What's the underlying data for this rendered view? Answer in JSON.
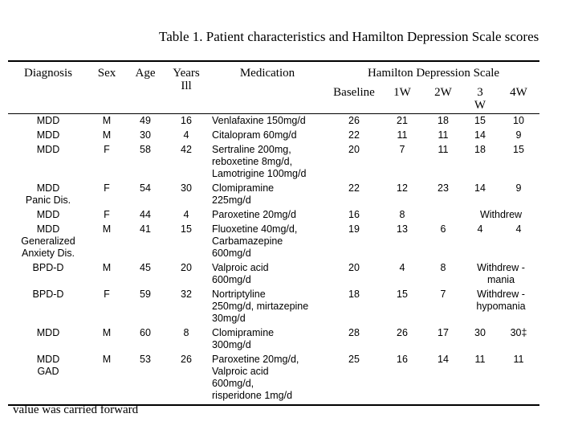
{
  "title": "Table 1. Patient characteristics and Hamilton Depression Scale scores",
  "table": {
    "headers": [
      "Diagnosis",
      "Sex",
      "Age",
      [
        "Years",
        "Ill"
      ],
      "Medication"
    ],
    "group_header": "Hamilton Depression Scale",
    "sub_headers": [
      "Baseline",
      "1W",
      "2W",
      [
        "3",
        "W"
      ],
      "4W"
    ],
    "rows": [
      {
        "patient": [
          "MDD",
          "M",
          "49",
          "16",
          [
            "Venlafaxine 150mg/d"
          ]
        ],
        "scores": [
          "26",
          "21",
          "18",
          "15",
          "10"
        ]
      },
      {
        "patient": [
          "MDD",
          "M",
          "30",
          "4",
          [
            "Citalopram 60mg/d"
          ]
        ],
        "scores": [
          "22",
          "11",
          "11",
          "14",
          "9"
        ]
      },
      {
        "patient": [
          "MDD",
          "F",
          "58",
          "42",
          [
            "Sertraline 200mg,",
            "reboxetine 8mg/d,",
            "Lamotrigine 100mg/d"
          ]
        ],
        "scores": [
          "20",
          "7",
          "11",
          "18",
          "15"
        ]
      },
      {
        "patient": [
          [
            "MDD",
            "Panic Dis."
          ],
          "F",
          "54",
          "30",
          [
            "Clomipramine",
            "225mg/d"
          ]
        ],
        "scores": [
          "22",
          "12",
          "23",
          "14",
          "9"
        ]
      },
      {
        "patient": [
          "MDD",
          "F",
          "44",
          "4",
          [
            "Paroxetine 20mg/d"
          ]
        ],
        "scores": [
          "16",
          "8"
        ],
        "status": [
          "Withdrew"
        ]
      },
      {
        "patient": [
          [
            "MDD",
            "Generalized",
            "Anxiety Dis."
          ],
          "M",
          "41",
          "15",
          [
            "Fluoxetine 40mg/d,",
            "Carbamazepine",
            "600mg/d"
          ]
        ],
        "scores": [
          "19",
          "13",
          "6",
          "4",
          "4"
        ]
      },
      {
        "patient": [
          "BPD-D",
          "M",
          "45",
          "20",
          [
            "Valproic acid",
            "600mg/d"
          ]
        ],
        "scores": [
          "20",
          "4",
          "8"
        ],
        "status": [
          "Withdrew -",
          "mania"
        ]
      },
      {
        "patient": [
          "BPD-D",
          "F",
          "59",
          "32",
          [
            "Nortriptyline",
            "250mg/d, mirtazepine",
            "30mg/d"
          ]
        ],
        "scores": [
          "18",
          "15",
          "7"
        ],
        "status": [
          "Withdrew -",
          "hypomania"
        ]
      },
      {
        "patient": [
          "MDD",
          "M",
          "60",
          "8",
          [
            "Clomipramine",
            "300mg/d"
          ]
        ],
        "scores": [
          "28",
          "26",
          "17",
          "30",
          "30‡"
        ]
      },
      {
        "patient": [
          [
            "MDD",
            "GAD"
          ],
          "M",
          "53",
          "26",
          [
            "Paroxetine 20mg/d,",
            "Valproic acid",
            "600mg/d,",
            "risperidone 1mg/d"
          ]
        ],
        "scores": [
          "25",
          "16",
          "14",
          "11",
          "11"
        ]
      }
    ]
  },
  "footnote": "value was carried forward"
}
